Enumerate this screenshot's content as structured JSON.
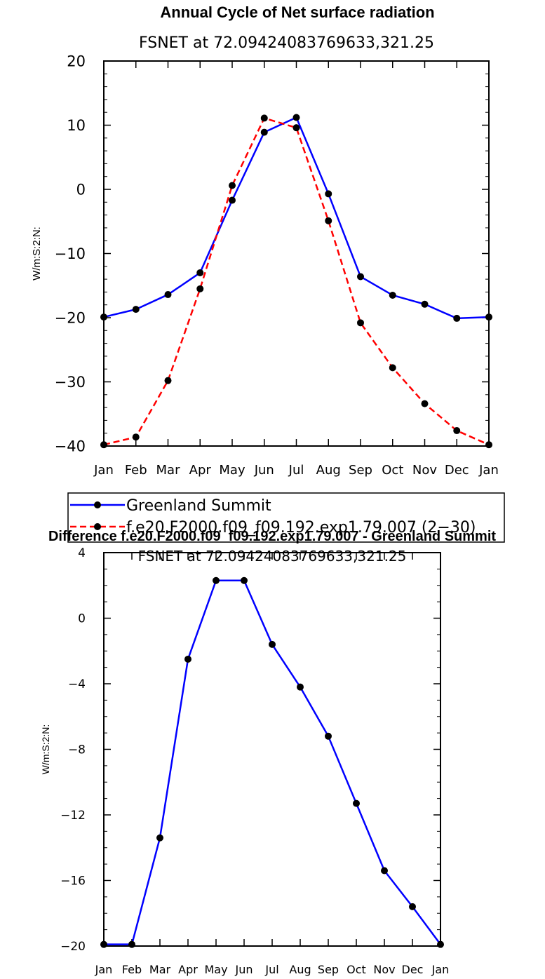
{
  "chart_data": [
    {
      "type": "line",
      "title": "Annual Cycle of Net surface radiation",
      "subtitle": "FSNET at 72.09424083769633,321.25",
      "ylabel": "W/m:S:2:N:",
      "xlabel": "",
      "categories": [
        "Jan",
        "Feb",
        "Mar",
        "Apr",
        "May",
        "Jun",
        "Jul",
        "Aug",
        "Sep",
        "Oct",
        "Nov",
        "Dec",
        "Jan"
      ],
      "ylim": [
        -40,
        20
      ],
      "yticks": [
        -40,
        -30,
        -20,
        -10,
        0,
        10,
        20
      ],
      "series": [
        {
          "name": "Greenland Summit",
          "color": "#0000ff",
          "dash": "solid",
          "values": [
            -19.9,
            -18.7,
            -16.4,
            -13.0,
            -1.7,
            8.9,
            11.2,
            -0.7,
            -13.6,
            -16.5,
            -17.9,
            -20.1,
            -19.9
          ]
        },
        {
          "name": "f.e20.F2000.f09_f09.192.exp1.79.007 (2−30)",
          "color": "#ff0000",
          "dash": "dashed",
          "values": [
            -39.8,
            -38.6,
            -29.8,
            -15.5,
            0.6,
            11.1,
            9.6,
            -4.9,
            -20.8,
            -27.8,
            -33.4,
            -37.6,
            -39.8
          ]
        }
      ],
      "legend": "below"
    },
    {
      "type": "line",
      "title": "Difference f.e20.F2000.f09_f09.192.exp1.79.007 - Greenland Summit",
      "subtitle": "FSNET at 72.09424083769633,321.25",
      "ylabel": "W/m:S:2:N:",
      "xlabel": "",
      "categories": [
        "Jan",
        "Feb",
        "Mar",
        "Apr",
        "May",
        "Jun",
        "Jul",
        "Aug",
        "Sep",
        "Oct",
        "Nov",
        "Dec",
        "Jan"
      ],
      "ylim": [
        -20,
        4
      ],
      "yticks": [
        -20,
        -16,
        -12,
        -8,
        -4,
        0,
        4
      ],
      "series": [
        {
          "name": "Difference",
          "color": "#0000ff",
          "dash": "solid",
          "values": [
            -19.9,
            -19.9,
            -13.4,
            -2.5,
            2.3,
            2.3,
            -1.6,
            -4.2,
            -7.2,
            -11.3,
            -15.4,
            -17.6,
            -19.9
          ]
        }
      ]
    }
  ]
}
